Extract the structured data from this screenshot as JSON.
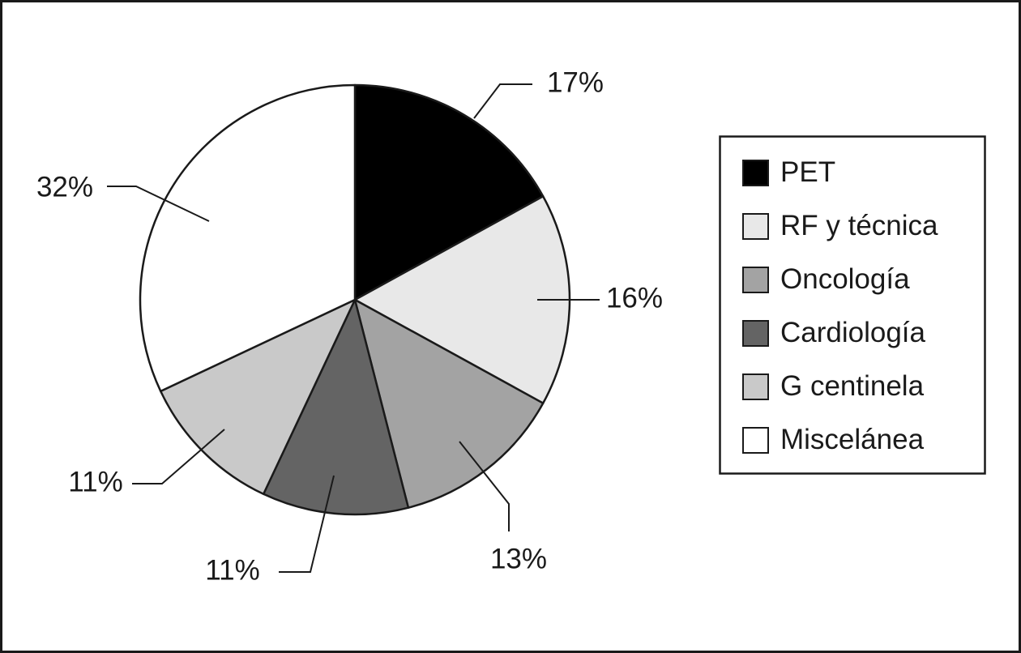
{
  "chart_data": {
    "type": "pie",
    "categories": [
      "PET",
      "RF y técnica",
      "Oncología",
      "Cardiología",
      "G centinela",
      "Miscelánea"
    ],
    "values": [
      17,
      16,
      13,
      11,
      11,
      32
    ],
    "labels": [
      "17%",
      "16%",
      "13%",
      "11%",
      "11%",
      "32%"
    ],
    "colors": [
      "#000000",
      "#e8e8e8",
      "#a3a3a3",
      "#646464",
      "#c9c9c9",
      "#ffffff"
    ],
    "legend_position": "right",
    "start": "top",
    "direction": "clockwise"
  }
}
